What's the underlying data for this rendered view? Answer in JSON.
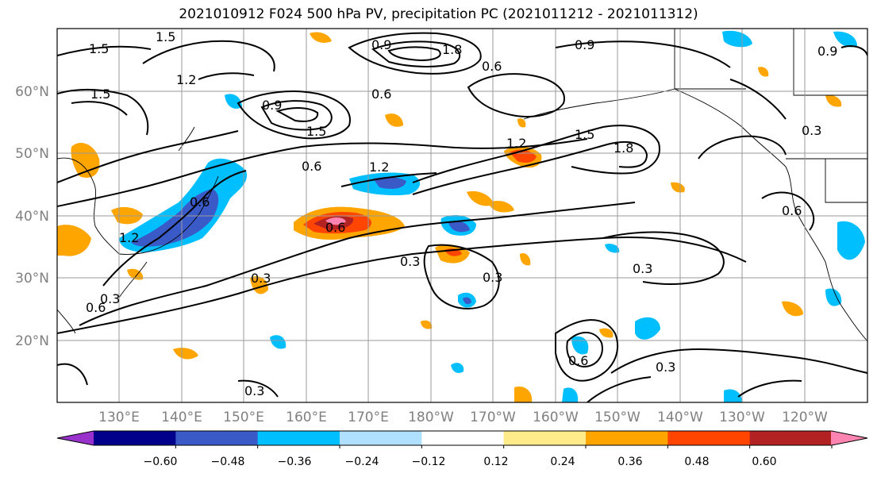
{
  "title": "2021010912 F024 500 hPa PV, precipitation PC (2021011212 - 2021011312)",
  "map": {
    "lat_labels": [
      "60°N",
      "50°N",
      "40°N",
      "30°N",
      "20°N"
    ],
    "lon_labels": [
      "130°E",
      "140°E",
      "150°E",
      "160°E",
      "170°E",
      "180°W",
      "170°W",
      "160°W",
      "150°W",
      "140°W",
      "130°W",
      "120°W"
    ],
    "grid": true
  },
  "contour_labels": [
    "1.5",
    "1.5",
    "1.5",
    "1.2",
    "0.9",
    "0.6",
    "0.9",
    "0.9",
    "1.8",
    "1.5",
    "1.2",
    "0.6",
    "0.6",
    "1.2",
    "1.5",
    "1.8",
    "0.3",
    "1.2",
    "0.6",
    "0.6",
    "0.6",
    "0.3",
    "0.3",
    "0.3",
    "0.3",
    "0.3",
    "0.6",
    "0.3",
    "0.6",
    "0.3",
    "0.9"
  ],
  "colorbar": {
    "tick_labels": [
      "−0.60",
      "−0.48",
      "−0.36",
      "−0.24",
      "−0.12",
      "0.12",
      "0.24",
      "0.36",
      "0.48",
      "0.60"
    ],
    "colors": [
      "#9932CC",
      "#00008B",
      "#3A5BC7",
      "#00BFFF",
      "#B0E0FF",
      "#FFFFFF",
      "#FFEB8A",
      "#FFA500",
      "#FF4500",
      "#B22222",
      "#FF85B0"
    ]
  }
}
